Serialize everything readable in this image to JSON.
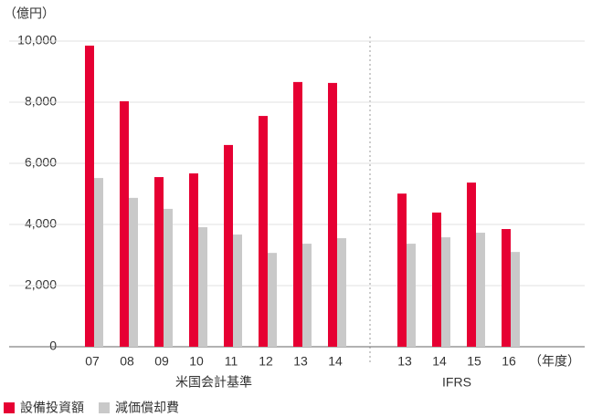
{
  "chart_data": {
    "type": "bar",
    "y_unit_label": "（億円）",
    "x_label": "（年度）",
    "group_labels": [
      "米国会計基準",
      "IFRS"
    ],
    "categories": [
      "07",
      "08",
      "09",
      "10",
      "11",
      "12",
      "13",
      "14",
      null,
      "13",
      "14",
      "15",
      "16"
    ],
    "series": [
      {
        "name": "設備投資額",
        "color": "#e60033",
        "values": [
          9850,
          8030,
          5550,
          5670,
          6600,
          7550,
          8660,
          8630,
          null,
          5010,
          4390,
          5370,
          3850
        ]
      },
      {
        "name": "減価償却費",
        "color": "#c9c9c9",
        "values": [
          5520,
          4870,
          4510,
          3910,
          3670,
          3070,
          3370,
          3550,
          null,
          3370,
          3580,
          3730,
          3100
        ]
      }
    ],
    "ylim": [
      0,
      10000
    ],
    "yticks": [
      {
        "value": 0,
        "label": "0"
      },
      {
        "value": 2000,
        "label": "2,000"
      },
      {
        "value": 4000,
        "label": "4,000"
      },
      {
        "value": 6000,
        "label": "6,000"
      },
      {
        "value": 8000,
        "label": "8,000"
      },
      {
        "value": 10000,
        "label": "10,000"
      }
    ],
    "grid": true
  }
}
